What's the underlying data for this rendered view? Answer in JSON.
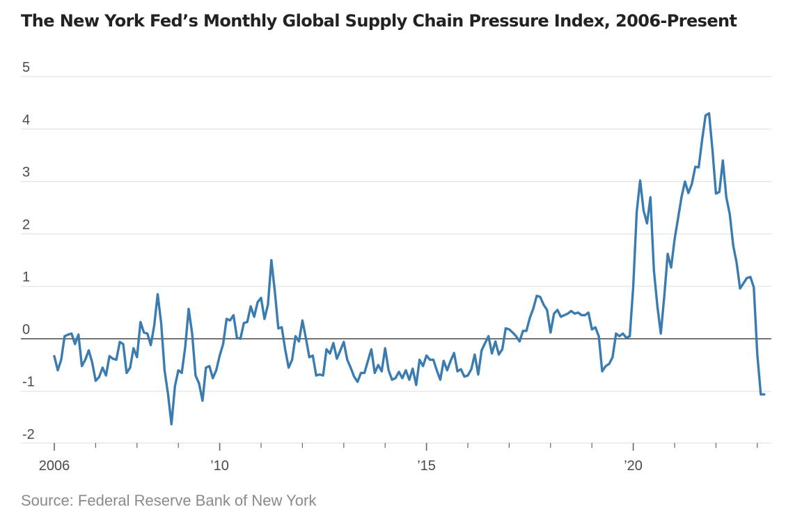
{
  "title": "The New York Fed’s Monthly Global Supply Chain Pressure Index, 2006-Present",
  "source": "Source: Federal Reserve Bank of New York",
  "colors": {
    "line": "#3a7bb0",
    "grid": "#dddddd",
    "zero_line": "#333333",
    "ticks": "#666666"
  },
  "chart_data": {
    "type": "line",
    "title": "The New York Fed’s Monthly Global Supply Chain Pressure Index, 2006-Present",
    "xlabel": "",
    "ylabel": "",
    "ylim": [
      -2,
      5
    ],
    "y_ticks": [
      -2,
      -1,
      0,
      1,
      2,
      3,
      4,
      5
    ],
    "y_tick_labels": [
      "-2",
      "-1",
      "0",
      "1",
      "2",
      "3",
      "4",
      "5"
    ],
    "x_ticks": [
      2006,
      2010,
      2015,
      2020
    ],
    "x_tick_labels": [
      "2006",
      "’10",
      "’15",
      "’20"
    ],
    "grid": "horizontal",
    "series": [
      {
        "x": [
          "2006-01",
          "2006-02",
          "2006-03",
          "2006-04",
          "2006-05",
          "2006-06",
          "2006-07",
          "2006-08",
          "2006-09",
          "2006-10",
          "2006-11",
          "2006-12",
          "2007-01",
          "2007-02",
          "2007-03",
          "2007-04",
          "2007-05",
          "2007-06",
          "2007-07",
          "2007-08",
          "2007-09",
          "2007-10",
          "2007-11",
          "2007-12",
          "2008-01",
          "2008-02",
          "2008-03",
          "2008-04",
          "2008-05",
          "2008-06",
          "2008-07",
          "2008-08",
          "2008-09",
          "2008-10",
          "2008-11",
          "2008-12",
          "2009-01",
          "2009-02",
          "2009-03",
          "2009-04",
          "2009-05",
          "2009-06",
          "2009-07",
          "2009-08",
          "2009-09",
          "2009-10",
          "2009-11",
          "2009-12",
          "2010-01",
          "2010-02",
          "2010-03",
          "2010-04",
          "2010-05",
          "2010-06",
          "2010-07",
          "2010-08",
          "2010-09",
          "2010-10",
          "2010-11",
          "2010-12",
          "2011-01",
          "2011-02",
          "2011-03",
          "2011-04",
          "2011-05",
          "2011-06",
          "2011-07",
          "2011-08",
          "2011-09",
          "2011-10",
          "2011-11",
          "2011-12",
          "2012-01",
          "2012-02",
          "2012-03",
          "2012-04",
          "2012-05",
          "2012-06",
          "2012-07",
          "2012-08",
          "2012-09",
          "2012-10",
          "2012-11",
          "2012-12",
          "2013-01",
          "2013-02",
          "2013-03",
          "2013-04",
          "2013-05",
          "2013-06",
          "2013-07",
          "2013-08",
          "2013-09",
          "2013-10",
          "2013-11",
          "2013-12",
          "2014-01",
          "2014-02",
          "2014-03",
          "2014-04",
          "2014-05",
          "2014-06",
          "2014-07",
          "2014-08",
          "2014-09",
          "2014-10",
          "2014-11",
          "2014-12",
          "2015-01",
          "2015-02",
          "2015-03",
          "2015-04",
          "2015-05",
          "2015-06",
          "2015-07",
          "2015-08",
          "2015-09",
          "2015-10",
          "2015-11",
          "2015-12",
          "2016-01",
          "2016-02",
          "2016-03",
          "2016-04",
          "2016-05",
          "2016-06",
          "2016-07",
          "2016-08",
          "2016-09",
          "2016-10",
          "2016-11",
          "2016-12",
          "2017-01",
          "2017-02",
          "2017-03",
          "2017-04",
          "2017-05",
          "2017-06",
          "2017-07",
          "2017-08",
          "2017-09",
          "2017-10",
          "2017-11",
          "2017-12",
          "2018-01",
          "2018-02",
          "2018-03",
          "2018-04",
          "2018-05",
          "2018-06",
          "2018-07",
          "2018-08",
          "2018-09",
          "2018-10",
          "2018-11",
          "2018-12",
          "2019-01",
          "2019-02",
          "2019-03",
          "2019-04",
          "2019-05",
          "2019-06",
          "2019-07",
          "2019-08",
          "2019-09",
          "2019-10",
          "2019-11",
          "2019-12",
          "2020-01",
          "2020-02",
          "2020-03",
          "2020-04",
          "2020-05",
          "2020-06",
          "2020-07",
          "2020-08",
          "2020-09",
          "2020-10",
          "2020-11",
          "2020-12",
          "2021-01",
          "2021-02",
          "2021-03",
          "2021-04",
          "2021-05",
          "2021-06",
          "2021-07",
          "2021-08",
          "2021-09",
          "2021-10",
          "2021-11",
          "2021-12",
          "2022-01",
          "2022-02",
          "2022-03",
          "2022-04",
          "2022-05",
          "2022-06",
          "2022-07",
          "2022-08",
          "2022-09",
          "2022-10",
          "2022-11",
          "2022-12",
          "2023-01",
          "2023-02",
          "2023-03"
        ],
        "values": [
          -0.33,
          -0.6,
          -0.4,
          0.05,
          0.08,
          0.1,
          -0.1,
          0.08,
          -0.52,
          -0.4,
          -0.22,
          -0.45,
          -0.8,
          -0.73,
          -0.55,
          -0.7,
          -0.33,
          -0.38,
          -0.4,
          -0.06,
          -0.1,
          -0.65,
          -0.55,
          -0.18,
          -0.35,
          0.32,
          0.12,
          0.1,
          -0.12,
          0.25,
          0.85,
          0.3,
          -0.6,
          -1.05,
          -1.63,
          -0.9,
          -0.6,
          -0.65,
          -0.15,
          0.57,
          0.1,
          -0.7,
          -0.85,
          -1.18,
          -0.55,
          -0.52,
          -0.75,
          -0.6,
          -0.32,
          -0.1,
          0.38,
          0.35,
          0.45,
          0.02,
          0.0,
          0.3,
          0.32,
          0.62,
          0.42,
          0.7,
          0.78,
          0.38,
          0.65,
          1.5,
          0.9,
          0.2,
          0.22,
          -0.2,
          -0.55,
          -0.4,
          0.05,
          -0.05,
          0.35,
          0.02,
          -0.35,
          -0.32,
          -0.7,
          -0.68,
          -0.7,
          -0.2,
          -0.28,
          -0.08,
          -0.38,
          -0.22,
          -0.06,
          -0.4,
          -0.55,
          -0.72,
          -0.82,
          -0.65,
          -0.65,
          -0.42,
          -0.2,
          -0.65,
          -0.5,
          -0.62,
          -0.18,
          -0.6,
          -0.78,
          -0.75,
          -0.63,
          -0.75,
          -0.6,
          -0.78,
          -0.57,
          -0.88,
          -0.4,
          -0.52,
          -0.32,
          -0.4,
          -0.4,
          -0.6,
          -0.78,
          -0.42,
          -0.6,
          -0.42,
          -0.27,
          -0.62,
          -0.58,
          -0.72,
          -0.7,
          -0.58,
          -0.3,
          -0.68,
          -0.22,
          -0.08,
          0.05,
          -0.28,
          -0.05,
          -0.3,
          -0.2,
          0.2,
          0.18,
          0.12,
          0.05,
          -0.05,
          0.15,
          0.15,
          0.4,
          0.58,
          0.82,
          0.8,
          0.65,
          0.55,
          0.12,
          0.48,
          0.55,
          0.42,
          0.45,
          0.48,
          0.53,
          0.48,
          0.5,
          0.45,
          0.45,
          0.5,
          0.18,
          0.22,
          0.05,
          -0.62,
          -0.52,
          -0.48,
          -0.35,
          0.1,
          0.05,
          0.1,
          0.02,
          0.05,
          1.0,
          2.42,
          3.02,
          2.45,
          2.2,
          2.7,
          1.3,
          0.62,
          0.1,
          0.8,
          1.62,
          1.36,
          1.9,
          2.3,
          2.7,
          3.0,
          2.78,
          2.95,
          3.28,
          3.27,
          3.8,
          4.26,
          4.3,
          3.6,
          2.77,
          2.8,
          3.4,
          2.7,
          2.38,
          1.78,
          1.45,
          0.96,
          1.06,
          1.16,
          1.18,
          0.98,
          -0.3,
          -1.06,
          -1.06
        ]
      }
    ]
  }
}
